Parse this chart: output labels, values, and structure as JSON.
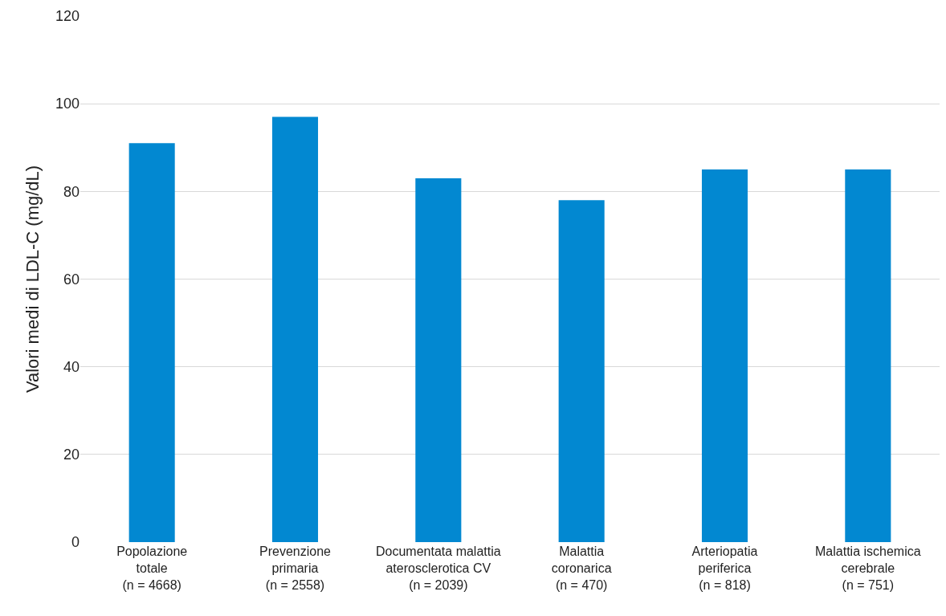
{
  "chart_data": {
    "type": "bar",
    "ylabel": "Valori medi di LDL-C (mg/dL)",
    "categories": [
      "Popolazione\ntotale\n(n = 4668)",
      "Prevenzione\nprimaria\n(n = 2558)",
      "Documentata malattia\naterosclerotica CV\n(n = 2039)",
      "Malattia\ncoronarica\n(n = 470)",
      "Arteriopatia\nperiferica\n(n = 818)",
      "Malattia ischemica\ncerebrale\n(n = 751)"
    ],
    "values": [
      91,
      97,
      83,
      78,
      85,
      85
    ],
    "color": "#0288d1",
    "ylim": [
      0,
      120
    ],
    "yticks": [
      0,
      20,
      40,
      60,
      80,
      100,
      120
    ],
    "grid": "y",
    "legend": false
  }
}
